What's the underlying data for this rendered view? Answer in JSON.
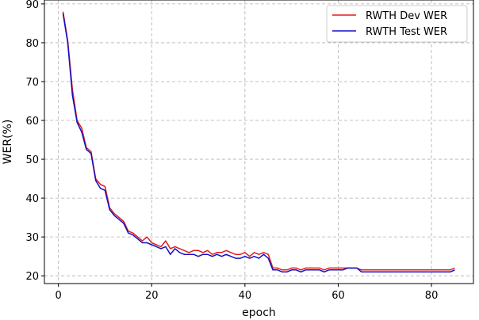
{
  "chart_data": {
    "type": "line",
    "title": "",
    "xlabel": "epoch",
    "ylabel": "WER(%)",
    "xlim": [
      -3,
      89
    ],
    "ylim": [
      18,
      91
    ],
    "xticks": [
      0,
      20,
      40,
      60,
      80
    ],
    "yticks": [
      20,
      30,
      40,
      50,
      60,
      70,
      80,
      90
    ],
    "grid": true,
    "grid_style": "dashed",
    "legend_position": "top-right",
    "series": [
      {
        "name": "RWTH Dev WER",
        "color": "#e31a1c",
        "x": [
          1,
          2,
          3,
          4,
          5,
          6,
          7,
          8,
          9,
          10,
          11,
          12,
          13,
          14,
          15,
          16,
          17,
          18,
          19,
          20,
          21,
          22,
          23,
          24,
          25,
          26,
          27,
          28,
          29,
          30,
          31,
          32,
          33,
          34,
          35,
          36,
          37,
          38,
          39,
          40,
          41,
          42,
          43,
          44,
          45,
          46,
          47,
          48,
          49,
          50,
          51,
          52,
          53,
          54,
          55,
          56,
          57,
          58,
          59,
          60,
          61,
          62,
          63,
          64,
          65,
          66,
          67,
          68,
          69,
          70,
          71,
          72,
          73,
          74,
          75,
          76,
          77,
          78,
          79,
          80,
          81,
          82,
          83,
          84,
          85
        ],
        "y": [
          88.0,
          80.5,
          68.0,
          60.0,
          58.0,
          53.0,
          52.0,
          45.0,
          43.5,
          43.0,
          37.5,
          36.0,
          35.0,
          34.0,
          31.5,
          31.0,
          30.0,
          29.0,
          30.0,
          28.5,
          28.0,
          27.5,
          29.0,
          27.0,
          27.5,
          27.0,
          26.5,
          26.0,
          26.5,
          26.5,
          26.0,
          26.5,
          25.5,
          26.0,
          26.0,
          26.5,
          26.0,
          25.5,
          25.5,
          26.0,
          25.0,
          26.0,
          25.5,
          26.0,
          25.5,
          22.0,
          22.0,
          21.5,
          21.5,
          22.0,
          22.0,
          21.5,
          22.0,
          22.0,
          22.0,
          22.0,
          21.5,
          22.0,
          22.0,
          22.0,
          22.0,
          22.0,
          22.0,
          22.0,
          21.5,
          21.5,
          21.5,
          21.5,
          21.5,
          21.5,
          21.5,
          21.5,
          21.5,
          21.5,
          21.5,
          21.5,
          21.5,
          21.5,
          21.5,
          21.5,
          21.5,
          21.5,
          21.5,
          21.5,
          22.0
        ]
      },
      {
        "name": "RWTH Test WER",
        "color": "#1010c8",
        "x": [
          1,
          2,
          3,
          4,
          5,
          6,
          7,
          8,
          9,
          10,
          11,
          12,
          13,
          14,
          15,
          16,
          17,
          18,
          19,
          20,
          21,
          22,
          23,
          24,
          25,
          26,
          27,
          28,
          29,
          30,
          31,
          32,
          33,
          34,
          35,
          36,
          37,
          38,
          39,
          40,
          41,
          42,
          43,
          44,
          45,
          46,
          47,
          48,
          49,
          50,
          51,
          52,
          53,
          54,
          55,
          56,
          57,
          58,
          59,
          60,
          61,
          62,
          63,
          64,
          65,
          66,
          67,
          68,
          69,
          70,
          71,
          72,
          73,
          74,
          75,
          76,
          77,
          78,
          79,
          80,
          81,
          82,
          83,
          84,
          85
        ],
        "y": [
          87.5,
          80.0,
          66.5,
          59.5,
          57.0,
          52.5,
          51.5,
          44.5,
          42.5,
          42.0,
          37.0,
          35.5,
          34.5,
          33.5,
          31.0,
          30.5,
          29.5,
          28.5,
          28.5,
          28.0,
          27.5,
          27.0,
          27.5,
          25.5,
          27.0,
          26.0,
          25.5,
          25.5,
          25.5,
          25.0,
          25.5,
          25.5,
          25.0,
          25.5,
          25.0,
          25.5,
          25.0,
          24.5,
          24.5,
          25.0,
          24.5,
          25.0,
          24.5,
          25.5,
          24.5,
          21.5,
          21.5,
          21.0,
          21.0,
          21.5,
          21.5,
          21.0,
          21.5,
          21.5,
          21.5,
          21.5,
          21.0,
          21.5,
          21.5,
          21.5,
          21.5,
          22.0,
          22.0,
          22.0,
          21.0,
          21.0,
          21.0,
          21.0,
          21.0,
          21.0,
          21.0,
          21.0,
          21.0,
          21.0,
          21.0,
          21.0,
          21.0,
          21.0,
          21.0,
          21.0,
          21.0,
          21.0,
          21.0,
          21.0,
          21.5
        ]
      }
    ]
  }
}
